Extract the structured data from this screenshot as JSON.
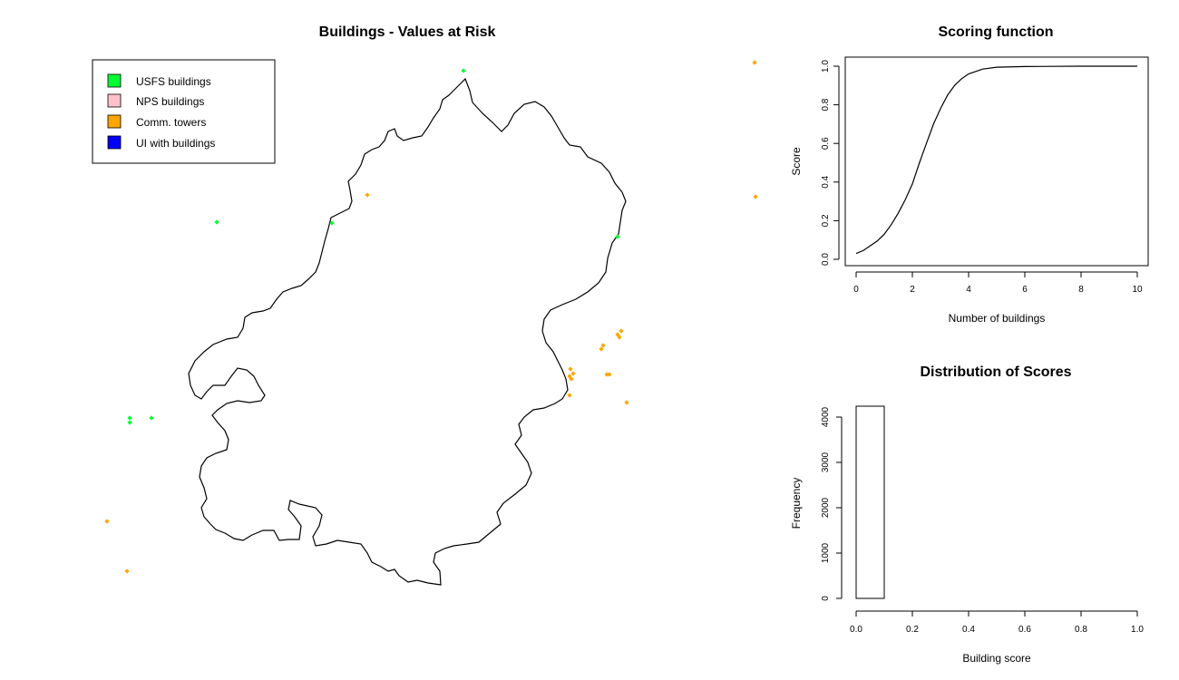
{
  "chart_data": [
    {
      "type": "scatter",
      "title": "Buildings - Values at Risk",
      "legend": {
        "placement": "top-left",
        "items": [
          {
            "label": "USFS buildings",
            "color": "#00ff33"
          },
          {
            "label": "NPS buildings",
            "color": "#ffc0cb"
          },
          {
            "label": "Comm. towers",
            "color": "#ffa500"
          },
          {
            "label": "UI with buildings",
            "color": "#0000ff"
          }
        ]
      },
      "series": [
        {
          "name": "USFS buildings",
          "color": "#00ff33",
          "points": [
            [
              511,
              78
            ],
            [
              239,
              245
            ],
            [
              366,
              246
            ],
            [
              681,
              261
            ],
            [
              143,
              461
            ],
            [
              143,
              466
            ],
            [
              167,
              461
            ]
          ]
        },
        {
          "name": "Comm. towers",
          "color": "#ffa500",
          "points": [
            [
              832,
              69
            ],
            [
              833,
              217
            ],
            [
              405,
              215
            ],
            [
              685,
              365
            ],
            [
              681,
              369
            ],
            [
              683,
              372
            ],
            [
              665,
              381
            ],
            [
              663,
              385
            ],
            [
              629,
              407
            ],
            [
              632,
              412
            ],
            [
              628,
              415
            ],
            [
              630,
              418
            ],
            [
              669,
              413
            ],
            [
              672,
              413
            ],
            [
              628,
              436
            ],
            [
              691,
              444
            ],
            [
              118,
              575
            ],
            [
              140,
              630
            ]
          ]
        }
      ]
    },
    {
      "type": "line",
      "title": "Scoring function",
      "xlabel": "Number of buildings",
      "ylabel": "Score",
      "xlim": [
        0,
        10
      ],
      "ylim": [
        0,
        1
      ],
      "xticks": [
        "0",
        "2",
        "4",
        "6",
        "8",
        "10"
      ],
      "yticks": [
        "0.0",
        "0.2",
        "0.4",
        "0.6",
        "0.8",
        "1.0"
      ],
      "x": [
        0,
        0.25,
        0.5,
        0.75,
        1,
        1.25,
        1.5,
        1.75,
        2,
        2.25,
        2.5,
        2.75,
        3,
        3.25,
        3.5,
        3.75,
        4,
        4.5,
        5,
        6,
        7,
        8,
        9,
        10
      ],
      "y": [
        0.03,
        0.045,
        0.07,
        0.095,
        0.13,
        0.18,
        0.24,
        0.31,
        0.39,
        0.5,
        0.6,
        0.7,
        0.78,
        0.85,
        0.9,
        0.935,
        0.96,
        0.985,
        0.995,
        0.998,
        0.999,
        1.0,
        1.0,
        1.0
      ]
    },
    {
      "type": "bar",
      "title": "Distribution of Scores",
      "xlabel": "Building score",
      "ylabel": "Frequency",
      "xlim": [
        0,
        1
      ],
      "ylim": [
        0,
        4200
      ],
      "xticks": [
        "0.0",
        "0.2",
        "0.4",
        "0.6",
        "0.8",
        "1.0"
      ],
      "yticks": [
        "0",
        "1000",
        "2000",
        "3000",
        "4000"
      ],
      "bins": [
        {
          "from": 0.0,
          "to": 0.1,
          "count": 4240
        },
        {
          "from": 0.1,
          "to": 0.2,
          "count": 0
        },
        {
          "from": 0.2,
          "to": 0.3,
          "count": 0
        },
        {
          "from": 0.3,
          "to": 0.4,
          "count": 0
        },
        {
          "from": 0.4,
          "to": 0.5,
          "count": 0
        },
        {
          "from": 0.5,
          "to": 0.6,
          "count": 0
        },
        {
          "from": 0.6,
          "to": 0.7,
          "count": 0
        },
        {
          "from": 0.7,
          "to": 0.8,
          "count": 0
        },
        {
          "from": 0.8,
          "to": 0.9,
          "count": 0
        },
        {
          "from": 0.9,
          "to": 1.0,
          "count": 0
        }
      ]
    }
  ]
}
